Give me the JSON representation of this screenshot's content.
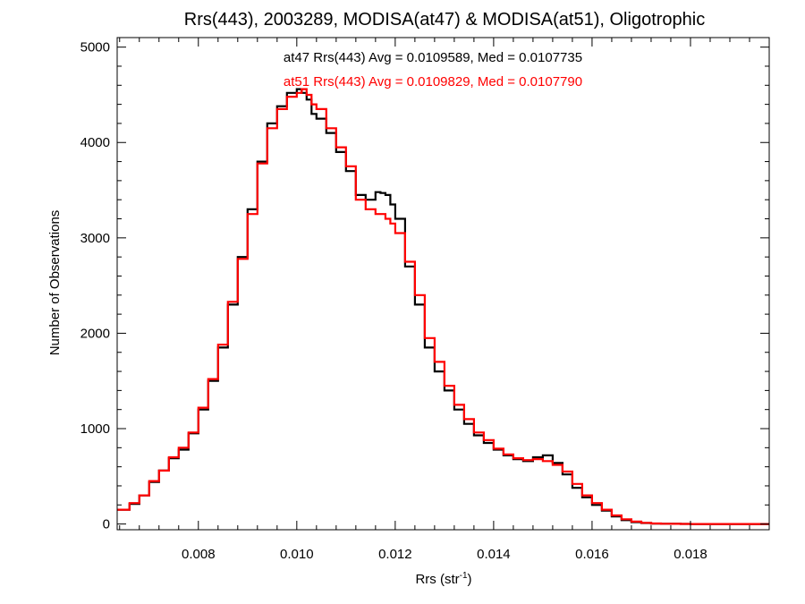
{
  "chart_data": {
    "type": "line",
    "title": "Rrs(443), 2003289, MODISA(at47) & MODISA(at51), Oligotrophic",
    "xlabel": {
      "main": "Rrs (str",
      "sup": "-1",
      "end": ")"
    },
    "ylabel": "Number of Observations",
    "xlim": [
      0.00635,
      0.0196
    ],
    "ylim": [
      -60,
      5100
    ],
    "xticks": [
      "0.008",
      "0.010",
      "0.012",
      "0.014",
      "0.016",
      "0.018"
    ],
    "yticks": [
      "0",
      "1000",
      "2000",
      "3000",
      "4000",
      "5000"
    ],
    "annotations": [
      {
        "text": "at47 Rrs(443) Avg = 0.0109589, Med = 0.0107735",
        "color": "#000000"
      },
      {
        "text": "at51 Rrs(443) Avg = 0.0109829, Med = 0.0107790",
        "color": "#ff0000"
      }
    ],
    "series": [
      {
        "color": "#000000",
        "x": [
          0.00635,
          0.0066,
          0.0068,
          0.007,
          0.0072,
          0.0074,
          0.0076,
          0.0078,
          0.008,
          0.0082,
          0.0084,
          0.0086,
          0.0088,
          0.009,
          0.0092,
          0.0094,
          0.0096,
          0.0098,
          0.01,
          0.0101,
          0.0102,
          0.0103,
          0.0104,
          0.0106,
          0.0108,
          0.011,
          0.0112,
          0.0114,
          0.0116,
          0.0117,
          0.0118,
          0.0119,
          0.012,
          0.0122,
          0.0124,
          0.0126,
          0.0128,
          0.013,
          0.0132,
          0.0134,
          0.0136,
          0.0138,
          0.014,
          0.0142,
          0.0144,
          0.0146,
          0.0148,
          0.015,
          0.0152,
          0.0154,
          0.0156,
          0.0158,
          0.016,
          0.0162,
          0.0164,
          0.0166,
          0.0168,
          0.017,
          0.0172,
          0.0174,
          0.0176,
          0.0178,
          0.018,
          0.0185,
          0.019,
          0.0196
        ],
        "y": [
          150,
          210,
          300,
          440,
          560,
          690,
          780,
          950,
          1200,
          1500,
          1850,
          2300,
          2800,
          3300,
          3800,
          4200,
          4380,
          4520,
          4560,
          4520,
          4450,
          4300,
          4250,
          4100,
          3900,
          3700,
          3450,
          3400,
          3480,
          3470,
          3450,
          3350,
          3200,
          2700,
          2300,
          1850,
          1600,
          1400,
          1200,
          1050,
          930,
          850,
          780,
          720,
          680,
          660,
          700,
          720,
          640,
          520,
          380,
          280,
          200,
          140,
          80,
          40,
          20,
          10,
          5,
          3,
          2,
          1,
          0,
          0,
          0,
          0
        ]
      },
      {
        "color": "#ff0000",
        "x": [
          0.00635,
          0.0066,
          0.0068,
          0.007,
          0.0072,
          0.0074,
          0.0076,
          0.0078,
          0.008,
          0.0082,
          0.0084,
          0.0086,
          0.0088,
          0.009,
          0.0092,
          0.0094,
          0.0096,
          0.0098,
          0.01,
          0.0101,
          0.0102,
          0.0103,
          0.0104,
          0.0106,
          0.0108,
          0.011,
          0.0112,
          0.0114,
          0.0116,
          0.0117,
          0.0118,
          0.0119,
          0.012,
          0.0122,
          0.0124,
          0.0126,
          0.0128,
          0.013,
          0.0132,
          0.0134,
          0.0136,
          0.0138,
          0.014,
          0.0142,
          0.0144,
          0.0146,
          0.0148,
          0.015,
          0.0152,
          0.0154,
          0.0156,
          0.0158,
          0.016,
          0.0162,
          0.0164,
          0.0166,
          0.0168,
          0.017,
          0.0172,
          0.0174,
          0.0176,
          0.0178,
          0.018,
          0.0185,
          0.019,
          0.0196
        ],
        "y": [
          150,
          220,
          300,
          450,
          560,
          700,
          800,
          960,
          1220,
          1520,
          1880,
          2330,
          2780,
          3250,
          3780,
          4150,
          4350,
          4480,
          4520,
          4560,
          4500,
          4400,
          4350,
          4150,
          3950,
          3750,
          3400,
          3300,
          3250,
          3250,
          3200,
          3150,
          3050,
          2750,
          2400,
          1950,
          1700,
          1450,
          1250,
          1100,
          960,
          880,
          790,
          730,
          690,
          670,
          680,
          660,
          620,
          550,
          420,
          300,
          220,
          150,
          90,
          50,
          25,
          12,
          6,
          3,
          2,
          1,
          0,
          0,
          0,
          0
        ]
      }
    ]
  }
}
